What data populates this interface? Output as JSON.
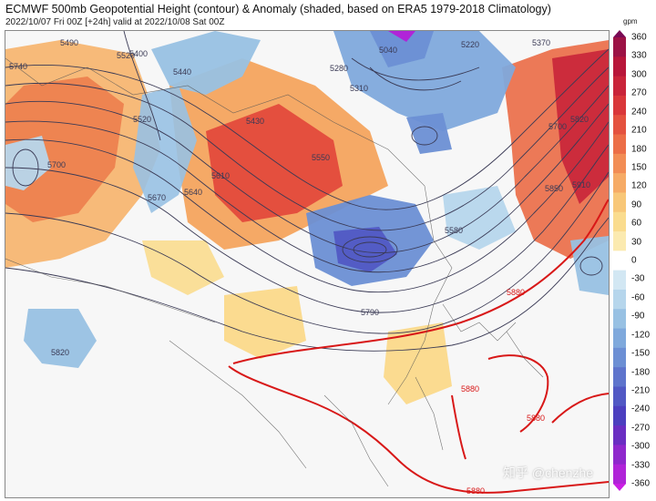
{
  "header": {
    "title": "ECMWF 500mb Geopotential Height (contour) & Anomaly (shaded, based on ERA5 1979-2018 Climatology)",
    "subtitle": "2022/10/07 Fri 00Z [+24h] valid at 2022/10/08 Sat 00Z"
  },
  "colorbar": {
    "unit": "gpm",
    "ticks": [
      "360",
      "330",
      "300",
      "270",
      "240",
      "210",
      "180",
      "150",
      "120",
      "90",
      "60",
      "30",
      "0",
      "-30",
      "-60",
      "-90",
      "-120",
      "-150",
      "-180",
      "-210",
      "-240",
      "-270",
      "-300",
      "-330",
      "-360"
    ],
    "colors": [
      "#7a0a55",
      "#9c1245",
      "#b8163a",
      "#c9243a",
      "#d9373a",
      "#e4523f",
      "#ec6e47",
      "#f28d55",
      "#f6ab66",
      "#f8c778",
      "#fadc8e",
      "#fbeab0",
      "#ffffff",
      "#d2e7f3",
      "#b6d6ec",
      "#98c1e3",
      "#7fa9dc",
      "#6c8fd4",
      "#5e74cc",
      "#5158c4",
      "#4c3fbf",
      "#6a2ec2",
      "#8f28cc",
      "#b024d8",
      "#cb1ee4"
    ]
  },
  "contour_labels": [
    "5490",
    "5520",
    "5440",
    "5400",
    "5740",
    "5700",
    "5520",
    "5670",
    "5640",
    "5610",
    "5430",
    "5550",
    "5280",
    "5310",
    "5040",
    "5220",
    "5370",
    "5700",
    "5820",
    "5910",
    "5850",
    "5580",
    "5790",
    "5820",
    "5880",
    "5880",
    "5880",
    "5880"
  ],
  "watermark": "知乎 @chenzhe"
}
